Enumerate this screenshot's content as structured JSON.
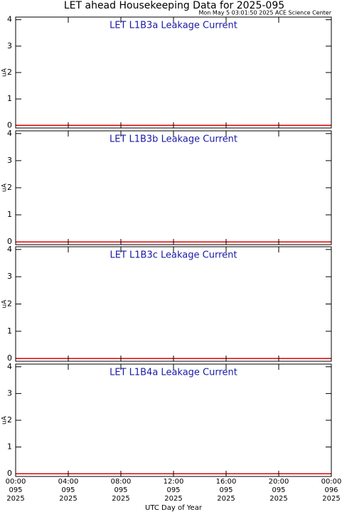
{
  "header": {
    "title": "LET ahead Housekeeping Data for 2025-095",
    "timestamp": "Mon May  5 03:01:50 2025 ACE Science Center"
  },
  "chart_data": [
    {
      "type": "line",
      "title": "LET L1B3a Leakage Current",
      "ylabel": "uA",
      "ylim": [
        -0.1,
        4.1
      ],
      "yticks": [
        0,
        1,
        2,
        3,
        4
      ],
      "xlim": [
        0,
        24
      ],
      "series": [
        {
          "color": "#e00000",
          "x": [
            0,
            24
          ],
          "values": [
            0,
            0
          ]
        }
      ],
      "title_color": "#1a1aa8"
    },
    {
      "type": "line",
      "title": "LET L1B3b Leakage Current",
      "ylabel": "uA",
      "ylim": [
        -0.1,
        4.1
      ],
      "yticks": [
        0,
        1,
        2,
        3,
        4
      ],
      "xlim": [
        0,
        24
      ],
      "series": [
        {
          "color": "#e00000",
          "x": [
            0,
            24
          ],
          "values": [
            0,
            0
          ]
        }
      ],
      "title_color": "#1a1aa8"
    },
    {
      "type": "line",
      "title": "LET L1B3c Leakage Current",
      "ylabel": "uA",
      "ylim": [
        -0.1,
        4.1
      ],
      "yticks": [
        0,
        1,
        2,
        3,
        4
      ],
      "xlim": [
        0,
        24
      ],
      "series": [
        {
          "color": "#e00000",
          "x": [
            0,
            24
          ],
          "values": [
            0,
            0
          ]
        }
      ],
      "title_color": "#1a1aa8"
    },
    {
      "type": "line",
      "title": "LET L1B4a Leakage Current",
      "ylabel": "uA",
      "ylim": [
        -0.1,
        4.1
      ],
      "yticks": [
        0,
        1,
        2,
        3,
        4
      ],
      "xlim": [
        0,
        24
      ],
      "series": [
        {
          "color": "#e00000",
          "x": [
            0,
            24
          ],
          "values": [
            0,
            0
          ]
        }
      ],
      "title_color": "#1a1aa8",
      "xlabel": "UTC Day of Year",
      "xticks": [
        {
          "value": 0,
          "label": [
            "00:00",
            "095",
            "2025"
          ]
        },
        {
          "value": 4,
          "label": [
            "04:00",
            "095",
            "2025"
          ]
        },
        {
          "value": 8,
          "label": [
            "08:00",
            "095",
            "2025"
          ]
        },
        {
          "value": 12,
          "label": [
            "12:00",
            "095",
            "2025"
          ]
        },
        {
          "value": 16,
          "label": [
            "16:00",
            "095",
            "2025"
          ]
        },
        {
          "value": 20,
          "label": [
            "20:00",
            "095",
            "2025"
          ]
        },
        {
          "value": 24,
          "label": [
            "00:00",
            "096",
            "2025"
          ]
        }
      ]
    }
  ]
}
